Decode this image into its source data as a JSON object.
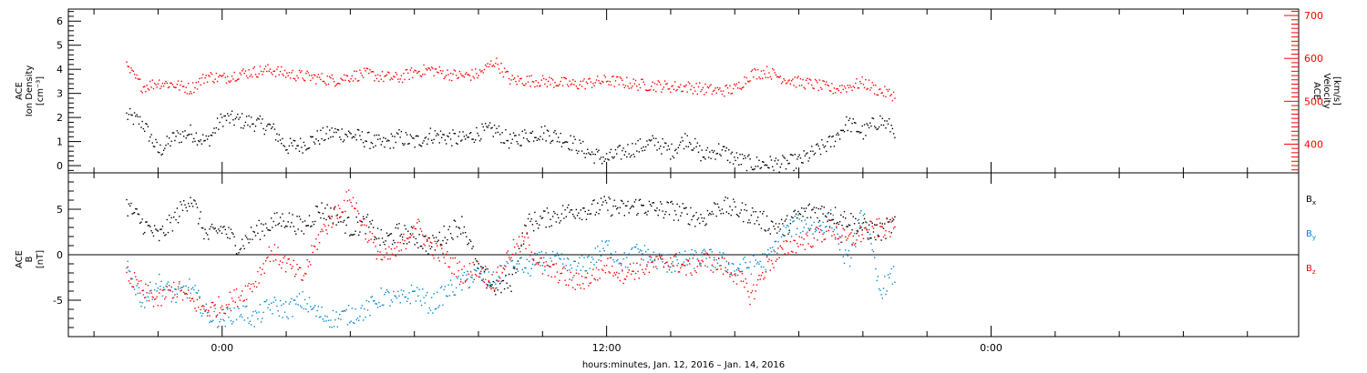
{
  "chart_data": [
    {
      "type": "scatter",
      "panel": "top",
      "left_axis": {
        "label_lines": [
          "ACE",
          "Ion Density",
          "[cm⁻³]"
        ],
        "range": [
          -0.3,
          6.5
        ],
        "ticks": [
          0,
          1,
          2,
          3,
          4,
          5,
          6
        ],
        "tick_labels": [
          "0",
          "1",
          "2",
          "3",
          "4",
          "5",
          "6"
        ],
        "color": "#000000"
      },
      "right_axis": {
        "label_lines": [
          "ACE",
          "Velocity",
          "[km/s]"
        ],
        "range": [
          333,
          715
        ],
        "ticks": [
          400,
          500,
          600,
          700
        ],
        "tick_labels": [
          "400",
          "500",
          "600",
          "700"
        ],
        "color": "#ff0000"
      },
      "series": [
        {
          "axis": "left",
          "color": "#000000",
          "points": [
            [
              -3,
              2.1
            ],
            [
              -2.5,
              1.8
            ],
            [
              -2,
              0.6
            ],
            [
              -1.5,
              1.2
            ],
            [
              -1,
              1.4
            ],
            [
              -0.5,
              1.0
            ],
            [
              0,
              2.0
            ],
            [
              0.5,
              1.9
            ],
            [
              1,
              1.8
            ],
            [
              1.5,
              1.6
            ],
            [
              2,
              0.8
            ],
            [
              2.5,
              0.9
            ],
            [
              3,
              1.2
            ],
            [
              3.5,
              1.4
            ],
            [
              4,
              1.3
            ],
            [
              4.5,
              1.1
            ],
            [
              5,
              0.9
            ],
            [
              5.5,
              1.2
            ],
            [
              6,
              1.0
            ],
            [
              6.5,
              1.3
            ],
            [
              7,
              1.2
            ],
            [
              7.5,
              1.1
            ],
            [
              8,
              1.4
            ],
            [
              8.5,
              1.5
            ],
            [
              9,
              1.0
            ],
            [
              9.5,
              1.3
            ],
            [
              10,
              1.4
            ],
            [
              10.5,
              1.2
            ],
            [
              11,
              0.9
            ],
            [
              11.5,
              0.5
            ],
            [
              12,
              0.3
            ],
            [
              12.5,
              0.6
            ],
            [
              13,
              0.8
            ],
            [
              13.5,
              1.0
            ],
            [
              14,
              0.6
            ],
            [
              14.5,
              1.2
            ],
            [
              15,
              0.4
            ],
            [
              15.5,
              0.7
            ],
            [
              16,
              0.3
            ],
            [
              16.5,
              0.1
            ],
            [
              17,
              0.1
            ],
            [
              17.5,
              0.1
            ],
            [
              18,
              0.2
            ],
            [
              18.5,
              0.6
            ],
            [
              19,
              1.0
            ],
            [
              19.5,
              1.8
            ],
            [
              20,
              1.4
            ],
            [
              20.5,
              1.9
            ],
            [
              21,
              1.5
            ]
          ]
        },
        {
          "axis": "right",
          "color": "#ff0000",
          "points": [
            [
              -3,
              580
            ],
            [
              -2.5,
              535
            ],
            [
              -2,
              545
            ],
            [
              -1.5,
              540
            ],
            [
              -1,
              530
            ],
            [
              -0.5,
              560
            ],
            [
              0,
              555
            ],
            [
              0.5,
              565
            ],
            [
              1,
              570
            ],
            [
              1.5,
              575
            ],
            [
              2,
              565
            ],
            [
              2.5,
              560
            ],
            [
              3,
              555
            ],
            [
              3.5,
              550
            ],
            [
              4,
              560
            ],
            [
              4.5,
              565
            ],
            [
              5,
              558
            ],
            [
              5.5,
              555
            ],
            [
              6,
              570
            ],
            [
              6.5,
              575
            ],
            [
              7,
              565
            ],
            [
              7.5,
              560
            ],
            [
              8,
              565
            ],
            [
              8.5,
              595
            ],
            [
              9,
              550
            ],
            [
              9.5,
              550
            ],
            [
              10,
              548
            ],
            [
              10.5,
              545
            ],
            [
              11,
              540
            ],
            [
              11.5,
              545
            ],
            [
              12,
              550
            ],
            [
              12.5,
              545
            ],
            [
              13,
              540
            ],
            [
              13.5,
              538
            ],
            [
              14,
              535
            ],
            [
              14.5,
              535
            ],
            [
              15,
              530
            ],
            [
              15.5,
              525
            ],
            [
              16,
              530
            ],
            [
              16.5,
              565
            ],
            [
              17,
              570
            ],
            [
              17.5,
              555
            ],
            [
              18,
              545
            ],
            [
              18.5,
              540
            ],
            [
              19,
              530
            ],
            [
              19.5,
              535
            ],
            [
              20,
              545
            ],
            [
              20.5,
              525
            ],
            [
              21,
              515
            ]
          ]
        }
      ]
    },
    {
      "type": "scatter",
      "panel": "bottom",
      "left_axis": {
        "label_lines": [
          "ACE",
          "B",
          "[nT]"
        ],
        "range": [
          -9,
          9
        ],
        "ticks": [
          -5,
          0,
          5
        ],
        "tick_labels": [
          "-5",
          "0",
          "5"
        ],
        "color": "#000000"
      },
      "zero_line": true,
      "legend_placement": "right",
      "series": [
        {
          "name": "Bx",
          "legend_main": "B",
          "legend_sub": "x",
          "color": "#000000",
          "points": [
            [
              -3,
              5.5
            ],
            [
              -2.5,
              3.5
            ],
            [
              -2,
              2.0
            ],
            [
              -1.5,
              4.0
            ],
            [
              -1,
              6.5
            ],
            [
              -0.5,
              2.0
            ],
            [
              0,
              3.0
            ],
            [
              0.5,
              1.0
            ],
            [
              1,
              2.5
            ],
            [
              1.5,
              3.5
            ],
            [
              2,
              4.0
            ],
            [
              2.5,
              3.0
            ],
            [
              3,
              5.0
            ],
            [
              3.5,
              4.5
            ],
            [
              4,
              3.0
            ],
            [
              4.5,
              3.5
            ],
            [
              5,
              1.5
            ],
            [
              5.5,
              2.5
            ],
            [
              6,
              2.0
            ],
            [
              6.5,
              1.0
            ],
            [
              7,
              2.5
            ],
            [
              7.5,
              3.5
            ],
            [
              8,
              -2.0
            ],
            [
              8.5,
              -3.5
            ],
            [
              9,
              -3.0
            ],
            [
              9.5,
              3.5
            ],
            [
              10,
              4.0
            ],
            [
              10.5,
              4.5
            ],
            [
              11,
              5.0
            ],
            [
              11.5,
              5.0
            ],
            [
              12,
              5.5
            ],
            [
              12.5,
              5.0
            ],
            [
              13,
              5.5
            ],
            [
              13.5,
              5.0
            ],
            [
              14,
              5.0
            ],
            [
              14.5,
              4.5
            ],
            [
              15,
              4.0
            ],
            [
              15.5,
              5.5
            ],
            [
              16,
              5.0
            ],
            [
              16.5,
              4.5
            ],
            [
              17,
              3.5
            ],
            [
              17.5,
              3.0
            ],
            [
              18,
              4.5
            ],
            [
              18.5,
              5.0
            ],
            [
              19,
              4.5
            ],
            [
              19.5,
              4.0
            ],
            [
              20,
              3.0
            ],
            [
              20.5,
              2.5
            ],
            [
              21,
              3.5
            ]
          ]
        },
        {
          "name": "By",
          "legend_main": "B",
          "legend_sub": "y",
          "color": "#0088cc",
          "points": [
            [
              -3,
              -1.5
            ],
            [
              -2.5,
              -5.0
            ],
            [
              -2,
              -3.0
            ],
            [
              -1.5,
              -4.5
            ],
            [
              -1,
              -3.5
            ],
            [
              -0.5,
              -6.5
            ],
            [
              0,
              -7.0
            ],
            [
              0.5,
              -6.0
            ],
            [
              1,
              -7.0
            ],
            [
              1.5,
              -5.5
            ],
            [
              2,
              -6.0
            ],
            [
              2.5,
              -5.0
            ],
            [
              3,
              -6.5
            ],
            [
              3.5,
              -7.0
            ],
            [
              4,
              -6.5
            ],
            [
              4.5,
              -6.0
            ],
            [
              5,
              -4.5
            ],
            [
              5.5,
              -5.0
            ],
            [
              6,
              -4.0
            ],
            [
              6.5,
              -5.5
            ],
            [
              7,
              -4.0
            ],
            [
              7.5,
              -3.0
            ],
            [
              8,
              -2.0
            ],
            [
              8.5,
              -3.0
            ],
            [
              9,
              -0.5
            ],
            [
              9.5,
              -1.5
            ],
            [
              10,
              -0.5
            ],
            [
              10.5,
              -0.8
            ],
            [
              11,
              -1.5
            ],
            [
              11.5,
              -0.5
            ],
            [
              12,
              1.0
            ],
            [
              12.5,
              -0.8
            ],
            [
              13,
              0.5
            ],
            [
              13.5,
              -0.5
            ],
            [
              14,
              -1.0
            ],
            [
              14.5,
              -0.5
            ],
            [
              15,
              -0.3
            ],
            [
              15.5,
              -0.5
            ],
            [
              16,
              -1.5
            ],
            [
              16.5,
              -1.0
            ],
            [
              17,
              -0.5
            ],
            [
              17.5,
              2.5
            ],
            [
              18,
              3.5
            ],
            [
              18.5,
              3.0
            ],
            [
              19,
              4.0
            ],
            [
              19.5,
              -1.0
            ],
            [
              20,
              5.0
            ],
            [
              20.5,
              -4.0
            ],
            [
              21,
              -2.0
            ]
          ]
        },
        {
          "name": "Bz",
          "legend_main": "B",
          "legend_sub": "z",
          "color": "#ff0000",
          "points": [
            [
              -3,
              -2.0
            ],
            [
              -2.5,
              -4.0
            ],
            [
              -2,
              -5.0
            ],
            [
              -1.5,
              -3.5
            ],
            [
              -1,
              -5.0
            ],
            [
              -0.5,
              -6.0
            ],
            [
              0,
              -5.5
            ],
            [
              0.5,
              -4.5
            ],
            [
              1,
              -3.0
            ],
            [
              1.5,
              0.5
            ],
            [
              2,
              -1.0
            ],
            [
              2.5,
              -2.5
            ],
            [
              3,
              2.0
            ],
            [
              3.5,
              4.5
            ],
            [
              4,
              6.5
            ],
            [
              4.5,
              2.5
            ],
            [
              5,
              -0.5
            ],
            [
              5.5,
              0.5
            ],
            [
              6,
              3.5
            ],
            [
              6.5,
              1.0
            ],
            [
              7,
              -0.5
            ],
            [
              7.5,
              -2.0
            ],
            [
              8,
              -1.5
            ],
            [
              8.5,
              -3.0
            ],
            [
              9,
              0.5
            ],
            [
              9.5,
              1.5
            ],
            [
              10,
              -1.5
            ],
            [
              10.5,
              -2.0
            ],
            [
              11,
              -3.0
            ],
            [
              11.5,
              -2.5
            ],
            [
              12,
              -1.0
            ],
            [
              12.5,
              -2.0
            ],
            [
              13,
              -1.5
            ],
            [
              13.5,
              -1.0
            ],
            [
              14,
              -0.5
            ],
            [
              14.5,
              -1.5
            ],
            [
              15,
              -0.5
            ],
            [
              15.5,
              -1.0
            ],
            [
              16,
              -2.0
            ],
            [
              16.5,
              -4.5
            ],
            [
              17,
              -1.0
            ],
            [
              17.5,
              0.5
            ],
            [
              18,
              1.5
            ],
            [
              18.5,
              2.0
            ],
            [
              19,
              3.0
            ],
            [
              19.5,
              1.5
            ],
            [
              20,
              2.5
            ],
            [
              20.5,
              3.0
            ],
            [
              21,
              3.0
            ]
          ]
        }
      ]
    }
  ],
  "x_axis": {
    "range": [
      -4.8,
      33.6
    ],
    "ticks": [
      0,
      12,
      24
    ],
    "tick_labels": [
      "0:00",
      "12:00",
      "0:00"
    ],
    "minor_tick_hours": 2,
    "label": "hours:minutes, Jan. 12, 2016 – Jan. 14, 2016"
  }
}
